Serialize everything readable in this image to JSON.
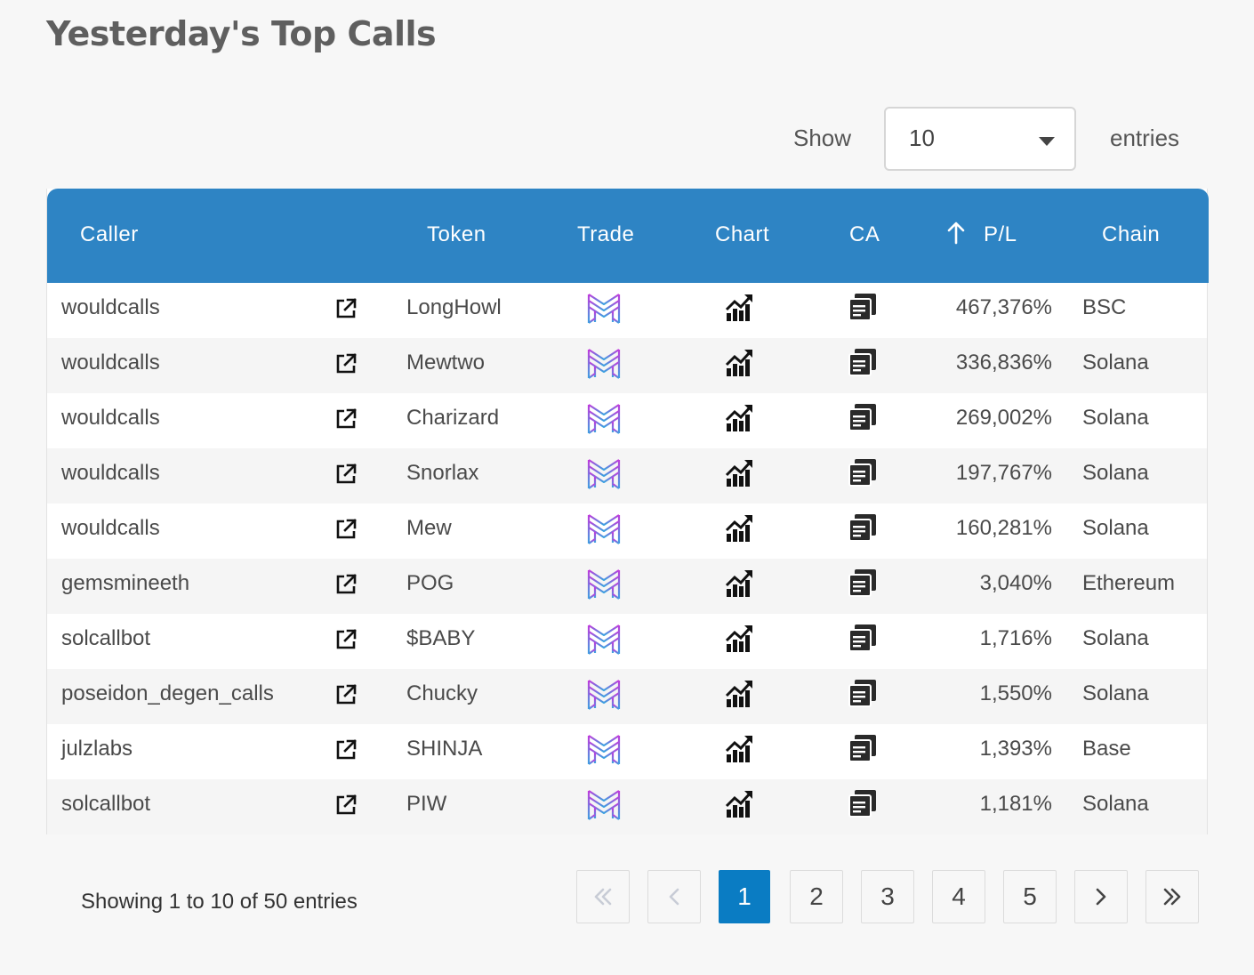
{
  "page_title": "Yesterday's Top Calls",
  "length_control": {
    "show_label": "Show",
    "selected": "10",
    "entries_label": "entries"
  },
  "table": {
    "headers": [
      "Caller",
      "Token",
      "Trade",
      "Chart",
      "CA",
      "P/L",
      "Chain"
    ],
    "sorted_column": "P/L",
    "rows": [
      {
        "caller": "wouldcalls",
        "token": "LongHowl",
        "pl": "467,376%",
        "chain": "BSC"
      },
      {
        "caller": "wouldcalls",
        "token": "Mewtwo",
        "pl": "336,836%",
        "chain": "Solana"
      },
      {
        "caller": "wouldcalls",
        "token": "Charizard",
        "pl": "269,002%",
        "chain": "Solana"
      },
      {
        "caller": "wouldcalls",
        "token": "Snorlax",
        "pl": "197,767%",
        "chain": "Solana"
      },
      {
        "caller": "wouldcalls",
        "token": "Mew",
        "pl": "160,281%",
        "chain": "Solana"
      },
      {
        "caller": "gemsmineeth",
        "token": "POG",
        "pl": "3,040%",
        "chain": "Ethereum"
      },
      {
        "caller": "solcallbot",
        "token": "$BABY",
        "pl": "1,716%",
        "chain": "Solana"
      },
      {
        "caller": "poseidon_degen_calls",
        "token": "Chucky",
        "pl": "1,550%",
        "chain": "Solana"
      },
      {
        "caller": "julzlabs",
        "token": "SHINJA",
        "pl": "1,393%",
        "chain": "Base"
      },
      {
        "caller": "solcallbot",
        "token": "PIW",
        "pl": "1,181%",
        "chain": "Solana"
      }
    ],
    "row_icons": {
      "caller_link": "external-link-icon",
      "trade": "trade-logo-icon",
      "chart": "chart-trend-icon",
      "ca": "copy-icon"
    }
  },
  "footer": {
    "info": "Showing 1 to 10 of 50 entries"
  },
  "pagination": {
    "pages": [
      "1",
      "2",
      "3",
      "4",
      "5"
    ],
    "current": "1",
    "icons": [
      "double-chevron-left-icon",
      "chevron-left-icon",
      "chevron-right-icon",
      "double-chevron-right-icon"
    ]
  },
  "colors": {
    "header_bg": "#2e84c4",
    "active_page": "#0a7cc3",
    "trade_logo_top": "#c13bdc",
    "trade_logo_bottom": "#3aa3e0"
  }
}
